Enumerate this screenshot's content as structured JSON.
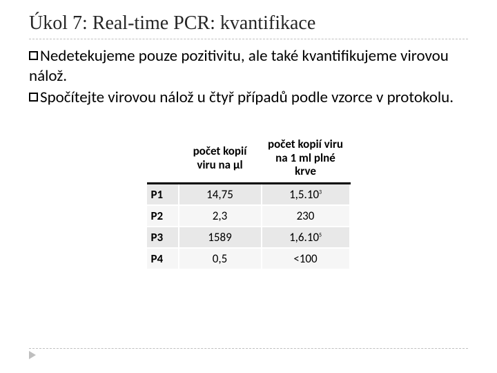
{
  "title": "Úkol 7: Real-time PCR: kvantifikace",
  "bullets": [
    {
      "lead": "Nedetekujeme",
      "rest": " pouze pozitivitu, ale také kvantifikujeme virovou nálož."
    },
    {
      "lead": "Spočítejte",
      "rest": " virovou nálož u čtyř případů podle vzorce v protokolu."
    }
  ],
  "table": {
    "headers": {
      "col1": "počet kopií viru na µl",
      "col2": "počet kopií viru na 1 ml plné krve"
    },
    "rows": [
      {
        "label": "P1",
        "perUl": "14,75",
        "perMl": "1,5.10",
        "exp": "3"
      },
      {
        "label": "P2",
        "perUl": "2,3",
        "perMl": "230",
        "exp": ""
      },
      {
        "label": "P3",
        "perUl": "1589",
        "perMl": "1,6.10",
        "exp": "5"
      },
      {
        "label": "P4",
        "perUl": "0,5",
        "perMl": "<100",
        "exp": ""
      }
    ]
  }
}
